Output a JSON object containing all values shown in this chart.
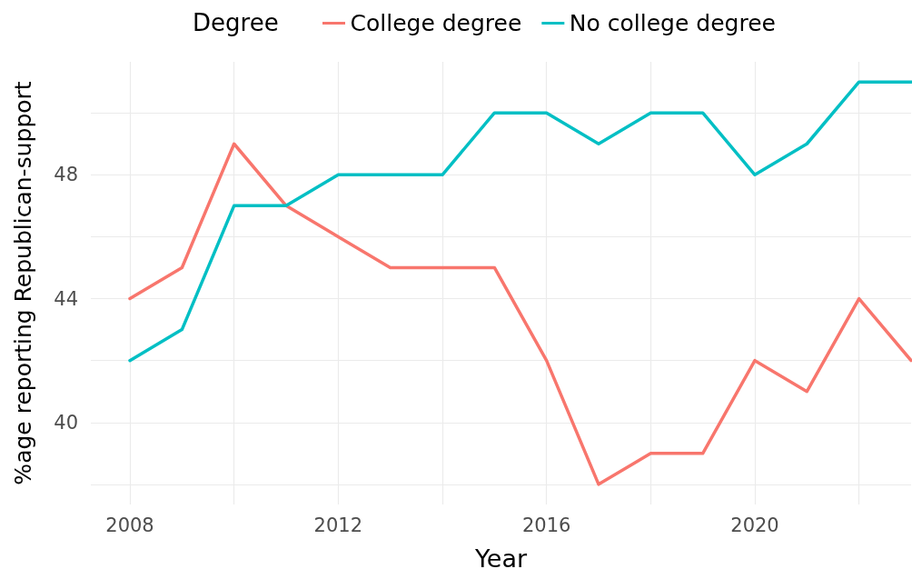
{
  "chart_data": {
    "type": "line",
    "xlabel": "Year",
    "ylabel": "%age reporting Republican-support",
    "legend_title": "Degree",
    "legend": "top",
    "grid": true,
    "marker": "none",
    "line_style": "solid",
    "x": [
      2008,
      2009,
      2010,
      2011,
      2012,
      2013,
      2014,
      2015,
      2016,
      2017,
      2018,
      2019,
      2020,
      2021,
      2022,
      2023
    ],
    "series": [
      {
        "name": "College degree",
        "color": "#f8766d",
        "values": [
          44,
          45,
          49,
          47,
          46,
          45,
          45,
          45,
          42,
          38,
          39,
          39,
          42,
          41,
          44,
          42
        ]
      },
      {
        "name": "No college degree",
        "color": "#00bfc4",
        "values": [
          42,
          43,
          47,
          47,
          48,
          48,
          48,
          50,
          50,
          49,
          50,
          50,
          48,
          49,
          51,
          51
        ]
      }
    ],
    "xlim": [
      2007.25,
      2023
    ],
    "xticks": [
      2008,
      {
        "value": 2010,
        "label": null
      },
      2012,
      {
        "value": 2014,
        "label": null
      },
      2016,
      {
        "value": 2018,
        "label": null
      },
      2020,
      {
        "value": 2022,
        "label": null
      }
    ],
    "ylim": [
      37.35,
      51.65
    ],
    "yticks": [
      {
        "value": 38,
        "label": null
      },
      40,
      {
        "value": 42,
        "label": null
      },
      44,
      {
        "value": 46,
        "label": null
      },
      48,
      {
        "value": 50,
        "label": null
      }
    ]
  }
}
